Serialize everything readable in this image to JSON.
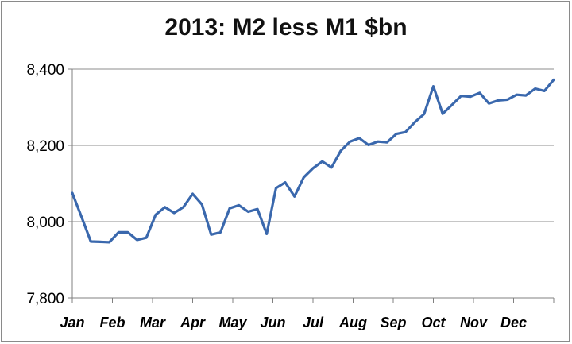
{
  "chart_data": {
    "type": "line",
    "title": "2013: M2 less M1 $bn",
    "xlabel": "",
    "ylabel": "",
    "ylim": [
      7800,
      8400
    ],
    "y_ticks": [
      "7,800",
      "8,000",
      "8,200",
      "8,400"
    ],
    "y_tick_values": [
      7800,
      8000,
      8200,
      8400
    ],
    "x_ticks": [
      "Jan",
      "Feb",
      "Mar",
      "Apr",
      "May",
      "Jun",
      "Jul",
      "Aug",
      "Sep",
      "Oct",
      "Nov",
      "Dec"
    ],
    "grid": true,
    "color": "#3a68ad",
    "series": [
      {
        "values": [
          8075,
          8012,
          7948,
          7947,
          7946,
          7972,
          7972,
          7952,
          7958,
          8018,
          8038,
          8023,
          8038,
          8073,
          8045,
          7966,
          7972,
          8035,
          8043,
          8026,
          8033,
          7968,
          8088,
          8103,
          8066,
          8116,
          8140,
          8158,
          8142,
          8186,
          8210,
          8219,
          8201,
          8210,
          8208,
          8230,
          8235,
          8261,
          8282,
          8355,
          8283,
          8306,
          8330,
          8328,
          8338,
          8310,
          8318,
          8320,
          8333,
          8331,
          8349,
          8343,
          8372
        ]
      }
    ]
  }
}
